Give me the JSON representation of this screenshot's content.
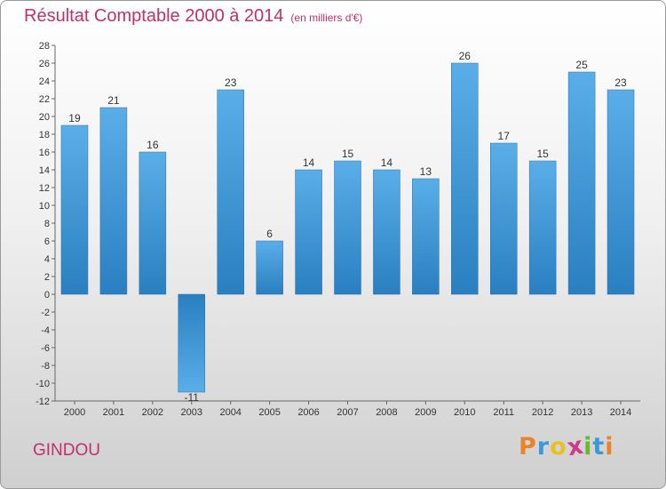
{
  "header": {
    "title": "Résultat Comptable 2000 à 2014",
    "subtitle": "(en milliers d'€)"
  },
  "footer": {
    "city": "GINDOU",
    "logo": [
      "P",
      "r",
      "o",
      "x",
      "i",
      "t",
      "i"
    ]
  },
  "colors": {
    "title": "#c0306a",
    "bar_light": "#5aaee8",
    "bar_dark": "#2a7fc0",
    "logo": [
      "#e8842a",
      "#3a9ad8",
      "#e8c020",
      "#d03a8a",
      "#6ab830",
      "#3a9ad8",
      "#e8842a"
    ]
  },
  "chart_data": {
    "type": "bar",
    "title": "Résultat Comptable 2000 à 2014",
    "subtitle": "(en milliers d'€)",
    "categories": [
      "2000",
      "2001",
      "2002",
      "2003",
      "2004",
      "2005",
      "2006",
      "2007",
      "2008",
      "2009",
      "2010",
      "2011",
      "2012",
      "2013",
      "2014"
    ],
    "values": [
      19,
      21,
      16,
      -11,
      23,
      6,
      14,
      15,
      14,
      13,
      26,
      17,
      15,
      25,
      23
    ],
    "ylim": [
      -12,
      28
    ],
    "yticks": [
      -12,
      -10,
      -8,
      -6,
      -4,
      -2,
      0,
      2,
      4,
      6,
      8,
      10,
      12,
      14,
      16,
      18,
      20,
      22,
      24,
      26,
      28
    ],
    "grid": false,
    "legend": "none"
  }
}
